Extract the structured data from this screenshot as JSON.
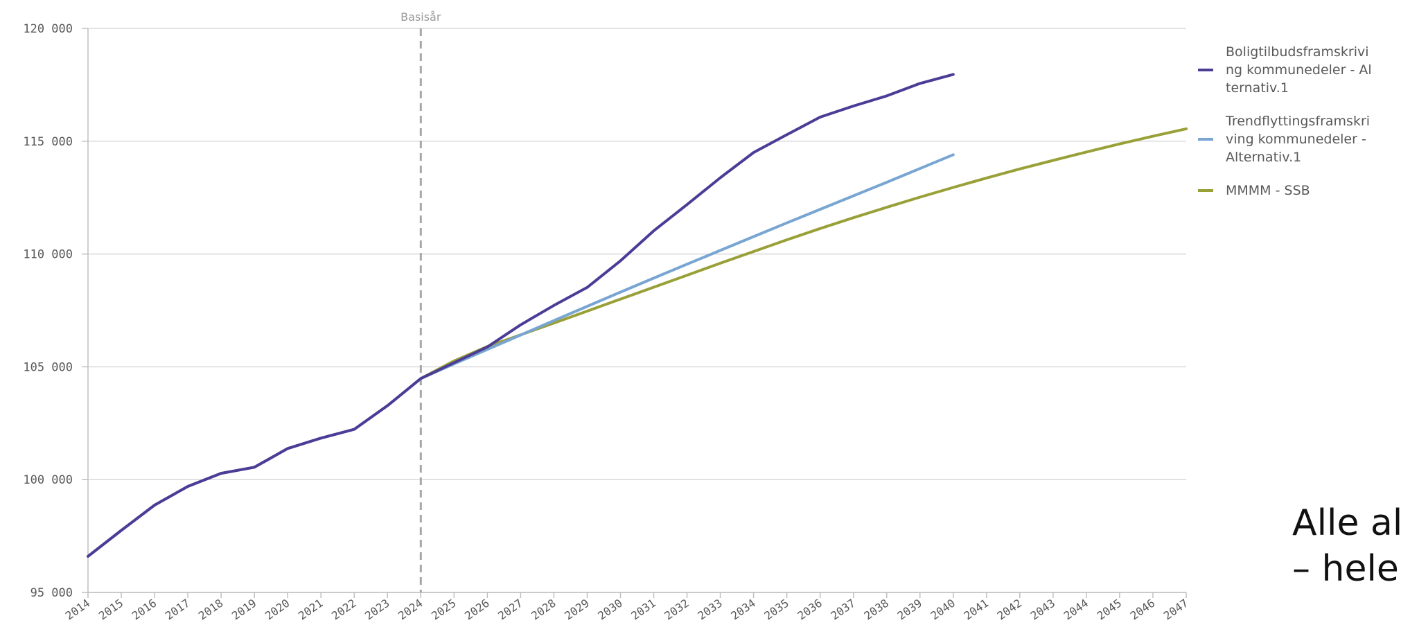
{
  "chart_data": {
    "type": "line",
    "title": "",
    "xlabel": "",
    "ylabel": "",
    "x": [
      "2014",
      "2015",
      "2016",
      "2017",
      "2018",
      "2019",
      "2020",
      "2021",
      "2022",
      "2023",
      "2024",
      "2025",
      "2026",
      "2027",
      "2028",
      "2029",
      "2030",
      "2031",
      "2032",
      "2033",
      "2034",
      "2035",
      "2036",
      "2037",
      "2038",
      "2039",
      "2040",
      "2041",
      "2042",
      "2043",
      "2044",
      "2045",
      "2046",
      "2047"
    ],
    "ylim": [
      95000,
      120000
    ],
    "yticks": [
      {
        "value": 95000,
        "label": "95 000"
      },
      {
        "value": 100000,
        "label": "100 000"
      },
      {
        "value": 105000,
        "label": "105 000"
      },
      {
        "value": 110000,
        "label": "110 000"
      },
      {
        "value": 115000,
        "label": "115 000"
      },
      {
        "value": 120000,
        "label": "120 000"
      }
    ],
    "grid": true,
    "reference_line": {
      "x": "2024",
      "label": "Basisår"
    },
    "legend_position": "right",
    "series": [
      {
        "name": "Boligtilbudsframskriving kommunedeler - Alternativ.1",
        "color": "#4b3c96",
        "values": [
          96600,
          97750,
          98870,
          99700,
          100280,
          100550,
          101380,
          101840,
          102230,
          103280,
          104480,
          105180,
          105880,
          106860,
          107720,
          108520,
          109700,
          111030,
          112190,
          113380,
          114500,
          115290,
          116070,
          116560,
          117010,
          117560,
          117960,
          null,
          null,
          null,
          null,
          null,
          null,
          null
        ]
      },
      {
        "name": "Trendflyttingsframskriving kommunedeler - Alternativ.1",
        "color": "#78a5d2",
        "values": [
          96600,
          97750,
          98870,
          99700,
          100280,
          100550,
          101380,
          101840,
          102230,
          103280,
          104480,
          105130,
          105770,
          106410,
          107050,
          107680,
          108310,
          108930,
          109550,
          110160,
          110770,
          111380,
          111980,
          112580,
          113180,
          113790,
          114400,
          null,
          null,
          null,
          null,
          null,
          null,
          null
        ]
      },
      {
        "name": "MMMM - SSB",
        "color": "#9aa038",
        "values": [
          null,
          null,
          null,
          null,
          null,
          null,
          null,
          null,
          null,
          null,
          104480,
          105260,
          105900,
          106420,
          106940,
          107470,
          108000,
          108530,
          109060,
          109590,
          110110,
          110630,
          111130,
          111610,
          112070,
          112520,
          112950,
          113370,
          113770,
          114150,
          114520,
          114880,
          115220,
          115550
        ]
      }
    ]
  },
  "legend_items": [
    {
      "label": "Boligtilbudsframskriving kommunedeler - Alternativ.1",
      "color": "#4b3c96"
    },
    {
      "label": "Trendflyttingsframskriving kommunedeler - Alternativ.1",
      "color": "#78a5d2"
    },
    {
      "label": "MMMM - SSB",
      "color": "#9aa038"
    }
  ],
  "caption": {
    "line1": "Alle al",
    "line2": "– hele"
  }
}
